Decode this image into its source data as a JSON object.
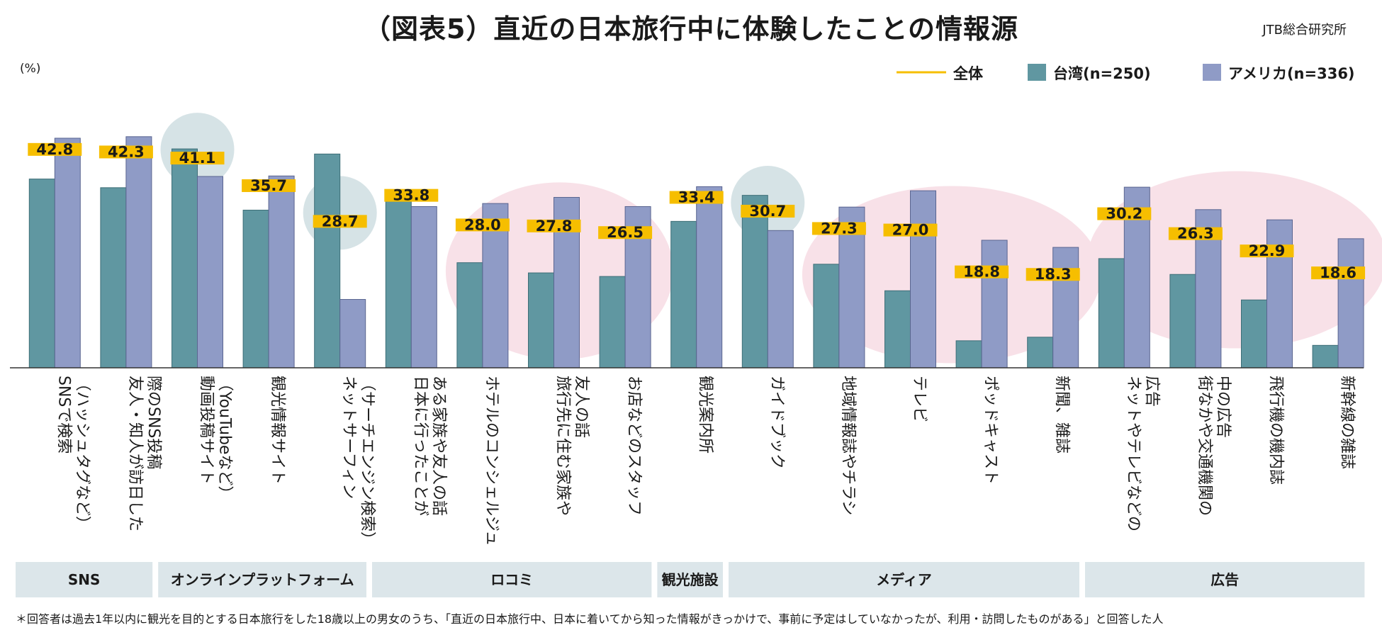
{
  "title": "（図表5）直近の日本旅行中に体験したことの情報源",
  "source": "JTB総合研究所",
  "footnote": "＊回答者は過去1年以内に観光を目的とする日本旅行をした18歳以上の男女のうち、「直近の日本旅行中、日本に着いてから知った情報がきっかけで、事前に予定はしていなかったが、利用・訪問したものがある」と回答した人",
  "colors": {
    "total": "#F6BE00",
    "taiwan": "#6097A1",
    "usa": "#8F9BC6",
    "group_band": "#DCE6EA",
    "highlight_blue": "#D6E3E6",
    "highlight_pink": "#F8E1E8"
  },
  "chart_data": {
    "type": "bar",
    "unit_label": "(%)",
    "ylim": [
      0,
      50
    ],
    "legend": {
      "position": "top-right",
      "items": [
        {
          "key": "total",
          "label": "全体",
          "mark": "line"
        },
        {
          "key": "taiwan",
          "label": "台湾(n=250)",
          "mark": "box"
        },
        {
          "key": "usa",
          "label": "アメリカ(n=336)",
          "mark": "box"
        }
      ]
    },
    "categories": [
      [
        "SNSで検索",
        "（ハッシュタグなど）"
      ],
      [
        "友人・知人が訪日した",
        "際のSNS投稿"
      ],
      [
        "動画投稿サイト",
        "（YouTubeなど）"
      ],
      [
        "観光情報サイト"
      ],
      [
        "ネットサーフィン",
        "（サーチエンジン検索）"
      ],
      [
        "日本に行ったことが",
        "ある家族や友人の話"
      ],
      [
        "ホテルのコンシェルジュ"
      ],
      [
        "旅行先に住む家族や",
        "友人の話"
      ],
      [
        "お店などのスタッフ"
      ],
      [
        "観光案内所"
      ],
      [
        "ガイドブック"
      ],
      [
        "地域情報誌やチラシ"
      ],
      [
        "テレビ"
      ],
      [
        "ポッドキャスト"
      ],
      [
        "新聞、雑誌"
      ],
      [
        "ネットやテレビなどの",
        "広告"
      ],
      [
        "街なかや交通機関の",
        "中の広告"
      ],
      [
        "飛行機の機内誌"
      ],
      [
        "新幹線の雑誌"
      ]
    ],
    "series": [
      {
        "name": "全体",
        "key": "total",
        "values": [
          42.8,
          42.3,
          41.1,
          35.7,
          28.7,
          33.8,
          28.0,
          27.8,
          26.5,
          33.4,
          30.7,
          27.3,
          27.0,
          18.8,
          18.3,
          30.2,
          26.3,
          22.9,
          18.6
        ]
      },
      {
        "name": "台湾(n=250)",
        "key": "taiwan",
        "values": [
          37.0,
          35.3,
          42.9,
          30.9,
          41.9,
          34.6,
          20.6,
          18.6,
          17.9,
          28.7,
          33.8,
          20.3,
          15.1,
          5.3,
          6.0,
          21.4,
          18.3,
          13.3,
          4.4
        ]
      },
      {
        "name": "アメリカ(n=336)",
        "key": "usa",
        "values": [
          45.0,
          45.3,
          37.5,
          37.6,
          13.4,
          31.6,
          32.2,
          33.4,
          31.6,
          35.5,
          26.9,
          31.5,
          34.7,
          25.0,
          23.6,
          35.4,
          31.0,
          29.0,
          25.3
        ]
      }
    ],
    "highlight_circles": [
      {
        "category_index": 2,
        "color": "highlight_blue"
      },
      {
        "category_index": 4,
        "color": "highlight_blue"
      },
      {
        "category_index": 10,
        "color": "highlight_blue"
      },
      {
        "from_index": 6,
        "to_index": 8,
        "color": "highlight_pink"
      },
      {
        "from_index": 11,
        "to_index": 14,
        "color": "highlight_pink"
      },
      {
        "from_index": 15,
        "to_index": 18,
        "color": "highlight_pink"
      }
    ],
    "groups": [
      {
        "label": "SNS",
        "from_index": 0,
        "to_index": 1
      },
      {
        "label": "オンラインプラットフォーム",
        "from_index": 2,
        "to_index": 4
      },
      {
        "label": "ロコミ",
        "from_index": 5,
        "to_index": 8
      },
      {
        "label": "観光施設",
        "from_index": 9,
        "to_index": 9
      },
      {
        "label": "メディア",
        "from_index": 10,
        "to_index": 14
      },
      {
        "label": "広告",
        "from_index": 15,
        "to_index": 18
      }
    ]
  }
}
